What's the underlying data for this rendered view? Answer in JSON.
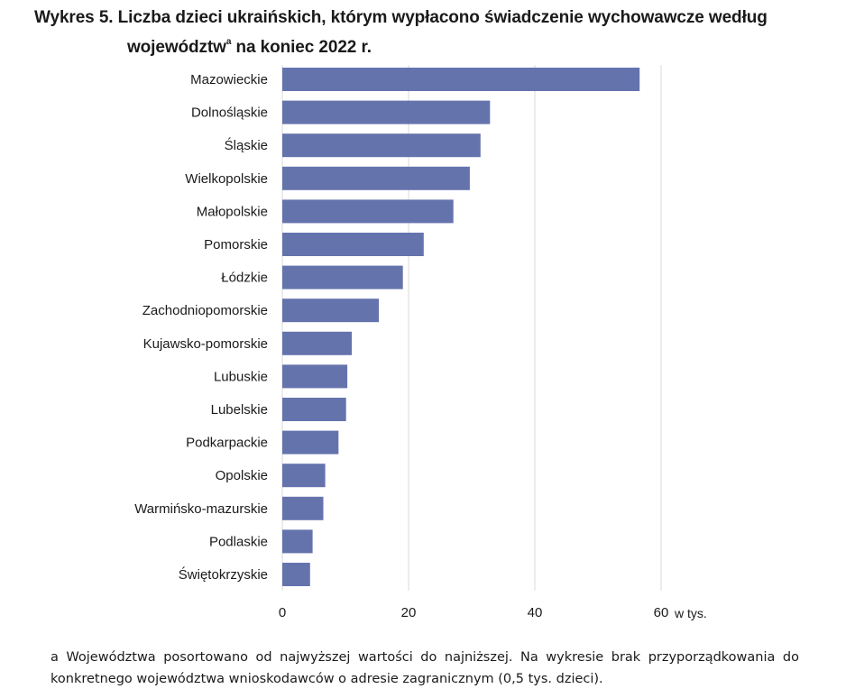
{
  "figure": {
    "title_line1": "Wykres 5. Liczba dzieci ukraińskich, którym wypłacono świadczenie wychowawcze według",
    "title_line2_main": "województw",
    "title_line2_sup": "a",
    "title_line2_rest": " na koniec 2022 r.",
    "footnote": "a Województwa posortowano od najwyższej wartości do najniższej. Na wykresie brak przyporządkowania do konkretnego województwa wnioskodawców o adresie zagranicznym (0,5 tys. dzieci)."
  },
  "chart_data": {
    "type": "bar",
    "orientation": "horizontal",
    "categories": [
      "Mazowieckie",
      "Dolnośląskie",
      "Śląskie",
      "Wielkopolskie",
      "Małopolskie",
      "Pomorskie",
      "Łódzkie",
      "Zachodniopomorskie",
      "Kujawsko-pomorskie",
      "Lubuskie",
      "Lubelskie",
      "Podkarpackie",
      "Opolskie",
      "Warmińsko-mazurskie",
      "Podlaskie",
      "Świętokrzyskie"
    ],
    "values": [
      56.6,
      32.9,
      31.4,
      29.7,
      27.1,
      22.4,
      19.1,
      15.3,
      11.0,
      10.3,
      10.1,
      8.9,
      6.8,
      6.5,
      4.8,
      4.4
    ],
    "xticks": [
      0,
      20,
      40,
      60
    ],
    "xlim": [
      0,
      60
    ],
    "unit_label": "w tys.",
    "grid": true,
    "bar_color": "#6573ad",
    "grid_color": "#d9d9d9"
  }
}
